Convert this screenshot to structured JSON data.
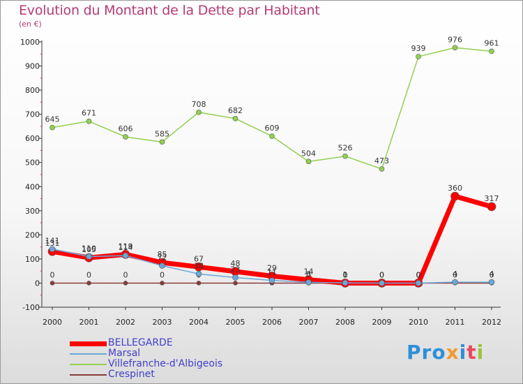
{
  "title": "Evolution du Montant de la Dette par Habitant",
  "subtitle": "(en €)",
  "logo": {
    "text": "Proxiti",
    "parts": [
      "Pro",
      "x",
      "i",
      "t",
      "i"
    ]
  },
  "chart_data": {
    "type": "line",
    "title": "Evolution du Montant de la Dette par Habitant",
    "ylabel": "(en €)",
    "x": [
      "2000",
      "2001",
      "2002",
      "2003",
      "2004",
      "2005",
      "2006",
      "2007",
      "2008",
      "2009",
      "2010",
      "2011",
      "2012"
    ],
    "ylim": [
      -100,
      1000
    ],
    "yticks": [
      -100,
      0,
      100,
      200,
      300,
      400,
      500,
      600,
      700,
      800,
      900,
      1000
    ],
    "grid": false,
    "legend": "bottom-left",
    "series": [
      {
        "name": "BELLEGARDE",
        "color": "#ff0000",
        "values": [
          131,
          105,
          119,
          85,
          67,
          48,
          29,
          14,
          0,
          0,
          0,
          360,
          317
        ],
        "labels": [
          "131",
          "105",
          "119",
          "85",
          "67",
          "48",
          "29",
          "14",
          "0",
          "0",
          "0",
          "360",
          "317"
        ]
      },
      {
        "name": "Marsal",
        "color": "#6ca6d8",
        "values": [
          141,
          110,
          114,
          72,
          38,
          23,
          11,
          3,
          1,
          0,
          0,
          4,
          4
        ],
        "labels": [
          "141",
          "110",
          "114",
          "72",
          "38",
          "23",
          "11",
          "3",
          "1",
          "0",
          "0",
          "4",
          "4"
        ]
      },
      {
        "name": "Villefranche-d'Albigeois",
        "color": "#92d050",
        "values": [
          645,
          671,
          606,
          585,
          708,
          682,
          609,
          504,
          526,
          473,
          939,
          976,
          961
        ],
        "labels": [
          "645",
          "671",
          "606",
          "585",
          "708",
          "682",
          "609",
          "504",
          "526",
          "473",
          "939",
          "976",
          "961"
        ]
      },
      {
        "name": "Crespinet",
        "color": "#8b3a3a",
        "values": [
          0,
          0,
          0,
          0,
          0,
          0,
          0,
          0,
          0,
          0,
          0,
          0,
          0
        ],
        "labels": [
          "0",
          "0",
          "0",
          "0",
          "0",
          "0",
          "0",
          "0",
          "0",
          "0",
          "0",
          "0",
          "0"
        ]
      }
    ]
  }
}
